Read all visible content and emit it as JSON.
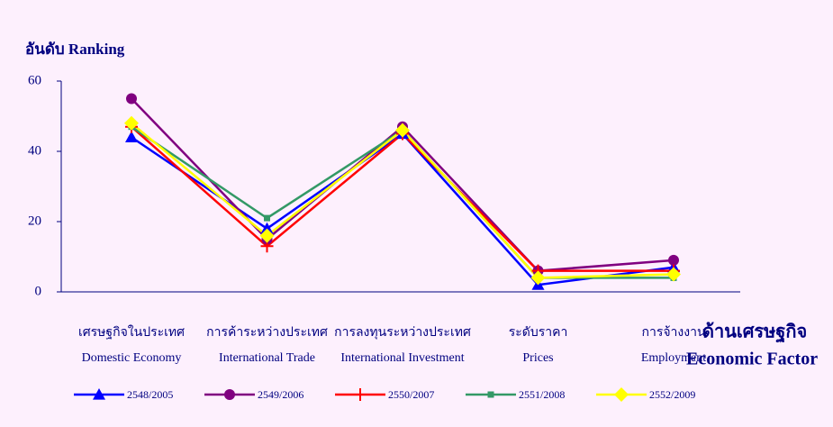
{
  "chart_data": {
    "type": "line",
    "y_label": "อันดับ Ranking",
    "x_label": [
      "ด้านเศรษฐกิจ",
      "Economic Factor"
    ],
    "categories": [
      "เศรษฐกิจในประเทศ",
      "การค้าระหว่างประเทศ",
      "การลงทุนระหว่างประเทศ",
      "ระดับราคา",
      "การจ้างงาน"
    ],
    "categories_en": [
      "Domestic Economy",
      "International Trade",
      "International Investment",
      "Prices",
      "Employment"
    ],
    "series": [
      {
        "name": "2548/2005",
        "color": "#0000ff",
        "marker": "triangle",
        "values": [
          44,
          18,
          45,
          2,
          7
        ]
      },
      {
        "name": "2549/2006",
        "color": "#800080",
        "marker": "circle",
        "values": [
          55,
          15,
          47,
          6,
          9
        ]
      },
      {
        "name": "2550/2007",
        "color": "#ff0000",
        "marker": "plus",
        "values": [
          47,
          13,
          45,
          6,
          6
        ]
      },
      {
        "name": "2551/2008",
        "color": "#339966",
        "marker": "square",
        "values": [
          47,
          21,
          46,
          4,
          4
        ]
      },
      {
        "name": "2552/2009",
        "color": "#ffff00",
        "marker": "diamond",
        "values": [
          48,
          16,
          46,
          4,
          5
        ]
      }
    ],
    "ylim": [
      0,
      60
    ],
    "yticks": [
      0,
      20,
      40,
      60
    ]
  }
}
